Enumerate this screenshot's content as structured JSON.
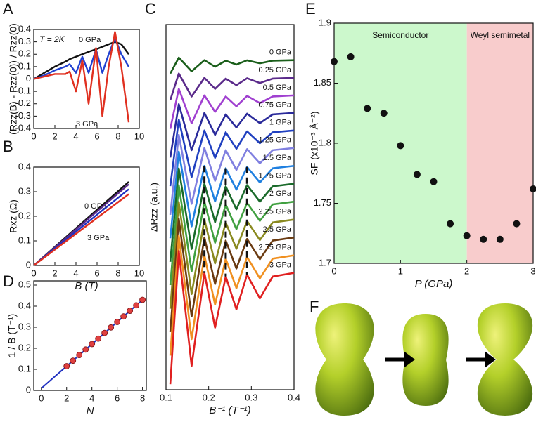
{
  "chart_data": [
    {
      "type": "line",
      "label": "A",
      "ylabel": "(Rzz(B) - Rzz(0)) / Rzz(0)",
      "annotations": [
        "T = 2K"
      ],
      "x": [
        0,
        1,
        2,
        3,
        3.4,
        4,
        4.6,
        5.2,
        5.9,
        6.5,
        7.1,
        7.7,
        8.3,
        9
      ],
      "series": [
        {
          "name": "0 GPa",
          "color": "#111111",
          "values": [
            0,
            0.05,
            0.1,
            0.14,
            0.16,
            0.18,
            0.2,
            0.22,
            0.24,
            0.26,
            0.28,
            0.3,
            0.28,
            0.2
          ]
        },
        {
          "color": "#2040d0",
          "values": [
            0,
            0.03,
            0.07,
            0.1,
            0.12,
            0.05,
            0.18,
            0.05,
            0.24,
            0.05,
            0.2,
            0.33,
            0.2,
            0.1
          ]
        },
        {
          "name": "3 GPa",
          "color": "#e03020",
          "values": [
            0,
            0.02,
            0.04,
            0.04,
            0.06,
            -0.1,
            0.15,
            -0.2,
            0.25,
            -0.3,
            0.1,
            0.38,
            0.1,
            -0.35
          ]
        }
      ],
      "xlim": [
        0,
        10
      ],
      "xticks": [
        0,
        2,
        4,
        6,
        8,
        10
      ],
      "ylim": [
        -0.4,
        0.4
      ],
      "yticks": [
        -0.4,
        -0.3,
        -0.2,
        -0.1,
        0,
        0.1,
        0.2,
        0.3,
        0.4
      ]
    },
    {
      "type": "line",
      "label": "B",
      "ylabel": "Rxz (Ω)",
      "xlabel": "B (T)",
      "x": [
        0,
        9
      ],
      "series": [
        {
          "name": "0 GPa",
          "color": "#111111",
          "values": [
            0,
            0.34
          ]
        },
        {
          "color": "#5a2a8a",
          "values": [
            0,
            0.33
          ]
        },
        {
          "color": "#2030c0",
          "values": [
            0,
            0.31
          ]
        },
        {
          "name": "3 GPa",
          "color": "#e03020",
          "values": [
            0,
            0.29
          ]
        }
      ],
      "xlim": [
        0,
        10
      ],
      "xticks": [
        0,
        2,
        4,
        6,
        8,
        10
      ],
      "ylim": [
        0,
        0.4
      ],
      "yticks": [
        0,
        0.1,
        0.2,
        0.3,
        0.4
      ]
    },
    {
      "type": "line",
      "label": "C",
      "ylabel": "ΔRzz (a.u.)",
      "xlabel": "B⁻¹ (T⁻¹)",
      "x": [
        0.11,
        0.13,
        0.16,
        0.19,
        0.215,
        0.24,
        0.265,
        0.29,
        0.32,
        0.35,
        0.4
      ],
      "series": [
        {
          "name": "0 GPa",
          "color": "#1a5e1a",
          "values": [
            17.32,
            18.19,
            17.44,
            18.05,
            17.69,
            18.02,
            17.81,
            18.04,
            17.88,
            18.02,
            18.05
          ]
        },
        {
          "name": "0.25 GPa",
          "color": "#5a2a8a",
          "values": [
            15.86,
            17.32,
            16.06,
            17.08,
            16.48,
            17.04,
            16.68,
            17.06,
            16.8,
            17.04,
            17.08
          ]
        },
        {
          "name": "0.5 GPa",
          "color": "#a040d0",
          "values": [
            14.29,
            16.48,
            14.59,
            16.12,
            15.22,
            16.06,
            15.52,
            16.09,
            15.7,
            16.06,
            16.12
          ]
        },
        {
          "name": "0.75 GPa",
          "color": "#2a2a9a",
          "values": [
            12.72,
            15.64,
            13.12,
            15.16,
            13.96,
            15.08,
            14.36,
            15.12,
            14.6,
            15.08,
            15.16
          ]
        },
        {
          "name": "1 GPa",
          "color": "#2040c0",
          "values": [
            11.15,
            14.8,
            11.65,
            14.2,
            12.7,
            14.1,
            13.2,
            14.15,
            13.5,
            14.1,
            14.2
          ]
        },
        {
          "name": "1.25 GPa",
          "color": "#8080e0",
          "values": [
            9.58,
            13.96,
            10.18,
            13.24,
            11.44,
            13.12,
            12.04,
            13.18,
            12.4,
            13.12,
            13.24
          ]
        },
        {
          "name": "1.5 GPa",
          "color": "#2080e0",
          "values": [
            8.3,
            13.04,
            8.95,
            12.26,
            10.31,
            12.13,
            10.96,
            12.2,
            11.35,
            12.13,
            12.26
          ]
        },
        {
          "name": "1.75 GPa",
          "color": "#1a6a2a",
          "values": [
            7.01,
            12.12,
            7.71,
            11.28,
            9.18,
            11.14,
            9.88,
            11.21,
            10.3,
            11.14,
            11.28
          ]
        },
        {
          "name": "2 GPa",
          "color": "#40a040",
          "values": [
            5.73,
            11.2,
            6.48,
            10.3,
            8.05,
            10.15,
            8.8,
            10.23,
            9.25,
            10.15,
            10.3
          ]
        },
        {
          "name": "2.25 GPa",
          "color": "#8a8a20",
          "values": [
            4.44,
            10.28,
            5.24,
            9.32,
            6.92,
            9.16,
            7.72,
            9.24,
            8.2,
            9.16,
            9.32
          ]
        },
        {
          "name": "2.5 GPa",
          "color": "#6a3a10",
          "values": [
            3.16,
            9.36,
            4.01,
            8.34,
            5.79,
            8.17,
            6.64,
            8.26,
            7.15,
            8.17,
            8.34
          ]
        },
        {
          "name": "2.75 GPa",
          "color": "#f09020",
          "values": [
            1.87,
            8.44,
            2.77,
            7.36,
            4.66,
            7.18,
            5.56,
            7.27,
            6.1,
            7.18,
            7.36
          ]
        },
        {
          "name": "3 GPa",
          "color": "#e02020",
          "values": [
            0.3,
            7.6,
            1.3,
            6.4,
            3.4,
            6.2,
            4.4,
            6.3,
            5.0,
            6.2,
            6.4
          ]
        }
      ],
      "xlim": [
        0.1,
        0.4
      ],
      "xticks": [
        0.1,
        0.2,
        0.3,
        0.4
      ],
      "ylim": [
        0,
        20
      ]
    },
    {
      "type": "scatter",
      "label": "D",
      "ylabel": "1 / B (T⁻¹)",
      "xlabel": "N",
      "color": "#e04040",
      "x": [
        2,
        2.5,
        3,
        3.5,
        4,
        4.5,
        5,
        5.5,
        6,
        6.5,
        7,
        7.5,
        8
      ],
      "values": [
        0.115,
        0.141,
        0.168,
        0.194,
        0.22,
        0.246,
        0.273,
        0.299,
        0.325,
        0.351,
        0.378,
        0.404,
        0.43
      ],
      "fit": {
        "color": "#2030c0",
        "x": [
          0,
          8
        ],
        "values": [
          0.01,
          0.43
        ]
      },
      "xlim": [
        -0.6,
        8.3
      ],
      "xticks": [
        0,
        2,
        4,
        6,
        8
      ],
      "ylim": [
        0,
        0.52
      ],
      "yticks": [
        0,
        0.1,
        0.2,
        0.3,
        0.4,
        0.5
      ]
    },
    {
      "type": "scatter",
      "label": "E",
      "ylabel": "SF (x10⁻³ Å⁻²)",
      "xlabel": "P (GPa)",
      "color": "#111111",
      "regions": [
        {
          "label": "Semiconductor",
          "from": 0,
          "to": 2,
          "color": "#ccf8cc"
        },
        {
          "label": "Weyl semimetal",
          "from": 2,
          "to": 3,
          "color": "#f8cccc"
        }
      ],
      "x": [
        0,
        0.25,
        0.5,
        0.75,
        1,
        1.25,
        1.5,
        1.75,
        2,
        2.25,
        2.5,
        2.75,
        3
      ],
      "values": [
        1.868,
        1.872,
        1.829,
        1.825,
        1.798,
        1.774,
        1.768,
        1.733,
        1.723,
        1.72,
        1.72,
        1.733,
        1.762
      ],
      "xlim": [
        0,
        3
      ],
      "xticks": [
        0,
        1,
        2,
        3
      ],
      "ylim": [
        1.7,
        1.9
      ],
      "yticks": [
        1.7,
        1.75,
        1.8,
        1.85,
        1.9
      ]
    }
  ],
  "illustration": {
    "label": "F"
  }
}
